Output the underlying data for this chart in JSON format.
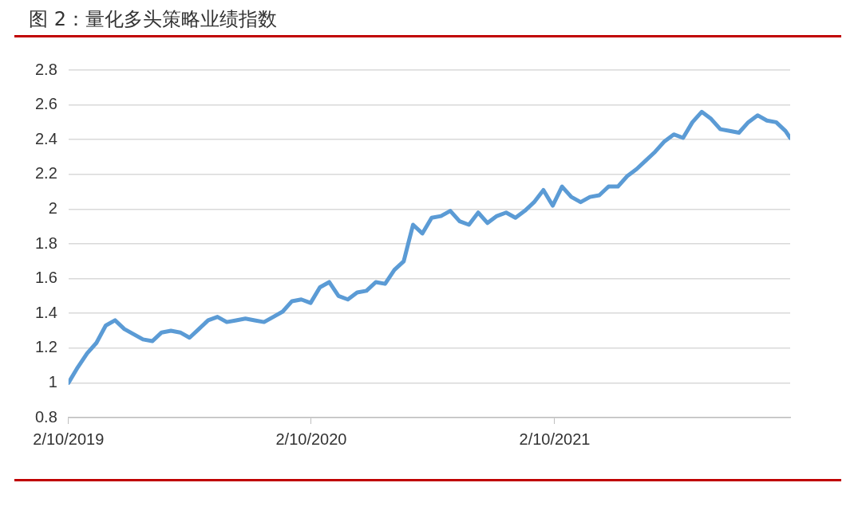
{
  "chart_data": {
    "type": "line",
    "title": "图 2：量化多头策略业绩指数",
    "x": [
      "2019-02-10",
      "2019-02-24",
      "2019-03-10",
      "2019-03-24",
      "2019-04-07",
      "2019-04-21",
      "2019-05-05",
      "2019-05-19",
      "2019-06-02",
      "2019-06-16",
      "2019-06-30",
      "2019-07-14",
      "2019-07-28",
      "2019-08-11",
      "2019-08-25",
      "2019-09-08",
      "2019-09-22",
      "2019-10-06",
      "2019-10-20",
      "2019-11-03",
      "2019-11-17",
      "2019-12-01",
      "2019-12-15",
      "2019-12-29",
      "2020-01-12",
      "2020-01-26",
      "2020-02-09",
      "2020-02-23",
      "2020-03-08",
      "2020-03-22",
      "2020-04-05",
      "2020-04-19",
      "2020-05-03",
      "2020-05-17",
      "2020-05-31",
      "2020-06-14",
      "2020-06-28",
      "2020-07-12",
      "2020-07-26",
      "2020-08-09",
      "2020-08-23",
      "2020-09-06",
      "2020-09-20",
      "2020-10-04",
      "2020-10-18",
      "2020-11-01",
      "2020-11-15",
      "2020-11-29",
      "2020-12-13",
      "2020-12-27",
      "2021-01-10",
      "2021-01-24",
      "2021-02-07",
      "2021-02-21",
      "2021-03-07",
      "2021-03-21",
      "2021-04-04",
      "2021-04-18",
      "2021-05-02",
      "2021-05-16",
      "2021-05-30",
      "2021-06-13",
      "2021-06-27",
      "2021-07-11",
      "2021-07-25",
      "2021-08-08",
      "2021-08-22",
      "2021-09-05",
      "2021-09-19",
      "2021-10-03",
      "2021-10-17",
      "2021-10-31",
      "2021-11-14",
      "2021-11-28",
      "2021-12-12",
      "2021-12-26",
      "2022-01-09",
      "2022-01-23",
      "2022-01-30"
    ],
    "series": [
      {
        "color": "#5b9bd5",
        "values": [
          1.0,
          1.09,
          1.17,
          1.23,
          1.33,
          1.36,
          1.31,
          1.28,
          1.25,
          1.24,
          1.29,
          1.3,
          1.29,
          1.26,
          1.31,
          1.36,
          1.38,
          1.35,
          1.36,
          1.37,
          1.36,
          1.35,
          1.38,
          1.41,
          1.47,
          1.48,
          1.46,
          1.55,
          1.58,
          1.5,
          1.48,
          1.52,
          1.53,
          1.58,
          1.57,
          1.65,
          1.7,
          1.91,
          1.86,
          1.95,
          1.96,
          1.99,
          1.93,
          1.91,
          1.98,
          1.92,
          1.96,
          1.98,
          1.95,
          1.99,
          2.04,
          2.11,
          2.02,
          2.13,
          2.07,
          2.04,
          2.07,
          2.08,
          2.13,
          2.13,
          2.19,
          2.23,
          2.28,
          2.33,
          2.39,
          2.43,
          2.41,
          2.5,
          2.56,
          2.52,
          2.46,
          2.45,
          2.44,
          2.5,
          2.54,
          2.51,
          2.5,
          2.45,
          2.41
        ]
      }
    ],
    "xlim": [
      "2019-02-10",
      "2022-01-30"
    ],
    "xticks": [
      {
        "value": "2019-02-10",
        "label": "2/10/2019"
      },
      {
        "value": "2020-02-10",
        "label": "2/10/2020"
      },
      {
        "value": "2021-02-10",
        "label": "2/10/2021"
      }
    ],
    "ylim": [
      0.8,
      2.8
    ],
    "yticks": [
      0.8,
      1,
      1.2,
      1.4,
      1.6,
      1.8,
      2,
      2.2,
      2.4,
      2.6,
      2.8
    ],
    "grid": "y",
    "legend": false,
    "marker": "none",
    "line_style": "solid"
  }
}
